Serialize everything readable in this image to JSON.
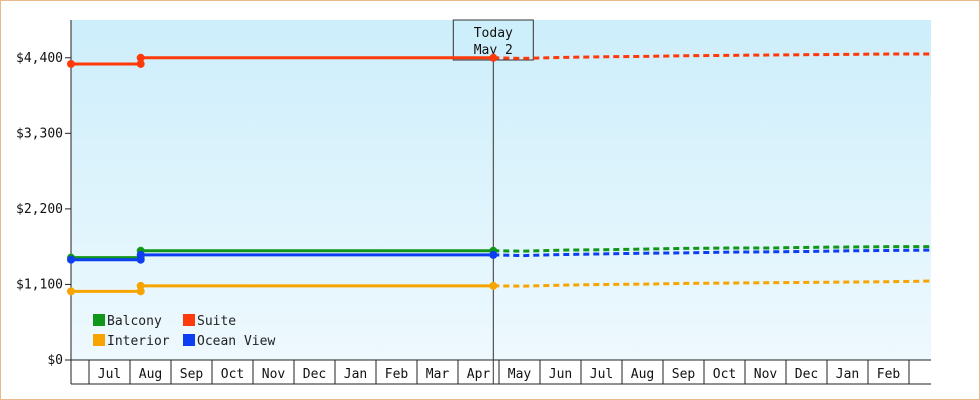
{
  "chart_data": {
    "type": "line",
    "title": "",
    "xlabel": "",
    "ylabel": "",
    "ylim": [
      0,
      4950
    ],
    "y_ticks": [
      {
        "value": 0,
        "label": "$0"
      },
      {
        "value": 1100,
        "label": "$1,100"
      },
      {
        "value": 2200,
        "label": "$2,200"
      },
      {
        "value": 3300,
        "label": "$3,300"
      },
      {
        "value": 4400,
        "label": "$4,400"
      }
    ],
    "x_month_labels": [
      "Jul",
      "Aug",
      "Sep",
      "Oct",
      "Nov",
      "Dec",
      "Jan",
      "Feb",
      "Mar",
      "Apr",
      "May",
      "Jun",
      "Jul",
      "Aug",
      "Sep",
      "Oct",
      "Nov",
      "Dec",
      "Jan",
      "Feb"
    ],
    "today": {
      "line1": "Today",
      "line2": "May 2"
    },
    "legend_placement": "bottom-left",
    "grid": false,
    "series": [
      {
        "name": "Balcony",
        "color": "#109618",
        "history": [
          [
            0,
            1490
          ],
          [
            1.7,
            1490
          ],
          [
            1.7,
            1590
          ],
          [
            10.3,
            1590
          ]
        ],
        "forecast": [
          [
            10.3,
            1590
          ],
          [
            11,
            1585
          ],
          [
            12,
            1600
          ],
          [
            13,
            1605
          ],
          [
            14,
            1615
          ],
          [
            15,
            1625
          ],
          [
            16,
            1630
          ],
          [
            17,
            1630
          ],
          [
            18,
            1640
          ],
          [
            19,
            1645
          ],
          [
            20,
            1650
          ],
          [
            21,
            1650
          ]
        ]
      },
      {
        "name": "Suite",
        "color": "#ff3a0a",
        "history": [
          [
            0,
            4310
          ],
          [
            1.7,
            4310
          ],
          [
            1.7,
            4400
          ],
          [
            10.3,
            4400
          ]
        ],
        "forecast": [
          [
            10.3,
            4400
          ],
          [
            11,
            4390
          ],
          [
            12,
            4405
          ],
          [
            13,
            4415
          ],
          [
            14,
            4420
          ],
          [
            15,
            4430
          ],
          [
            16,
            4435
          ],
          [
            17,
            4440
          ],
          [
            18,
            4445
          ],
          [
            19,
            4450
          ],
          [
            20,
            4455
          ],
          [
            21,
            4455
          ]
        ]
      },
      {
        "name": "Interior",
        "color": "#f7a400",
        "history": [
          [
            0,
            1000
          ],
          [
            1.7,
            1000
          ],
          [
            1.7,
            1080
          ],
          [
            10.3,
            1080
          ]
        ],
        "forecast": [
          [
            10.3,
            1080
          ],
          [
            11,
            1075
          ],
          [
            12,
            1090
          ],
          [
            13,
            1100
          ],
          [
            14,
            1105
          ],
          [
            15,
            1115
          ],
          [
            16,
            1120
          ],
          [
            17,
            1125
          ],
          [
            18,
            1130
          ],
          [
            19,
            1135
          ],
          [
            20,
            1140
          ],
          [
            21,
            1150
          ]
        ]
      },
      {
        "name": "Ocean View",
        "color": "#0d3ef2",
        "history": [
          [
            0,
            1460
          ],
          [
            1.7,
            1460
          ],
          [
            1.7,
            1530
          ],
          [
            10.3,
            1530
          ]
        ],
        "forecast": [
          [
            10.3,
            1530
          ],
          [
            11,
            1520
          ],
          [
            12,
            1535
          ],
          [
            13,
            1545
          ],
          [
            14,
            1555
          ],
          [
            15,
            1560
          ],
          [
            16,
            1570
          ],
          [
            17,
            1575
          ],
          [
            18,
            1580
          ],
          [
            19,
            1590
          ],
          [
            20,
            1595
          ],
          [
            21,
            1600
          ]
        ]
      }
    ],
    "legend": [
      {
        "name": "Balcony",
        "color": "#109618"
      },
      {
        "name": "Suite",
        "color": "#ff3a0a"
      },
      {
        "name": "Interior",
        "color": "#f7a400"
      },
      {
        "name": "Ocean View",
        "color": "#0d3ef2"
      }
    ]
  }
}
